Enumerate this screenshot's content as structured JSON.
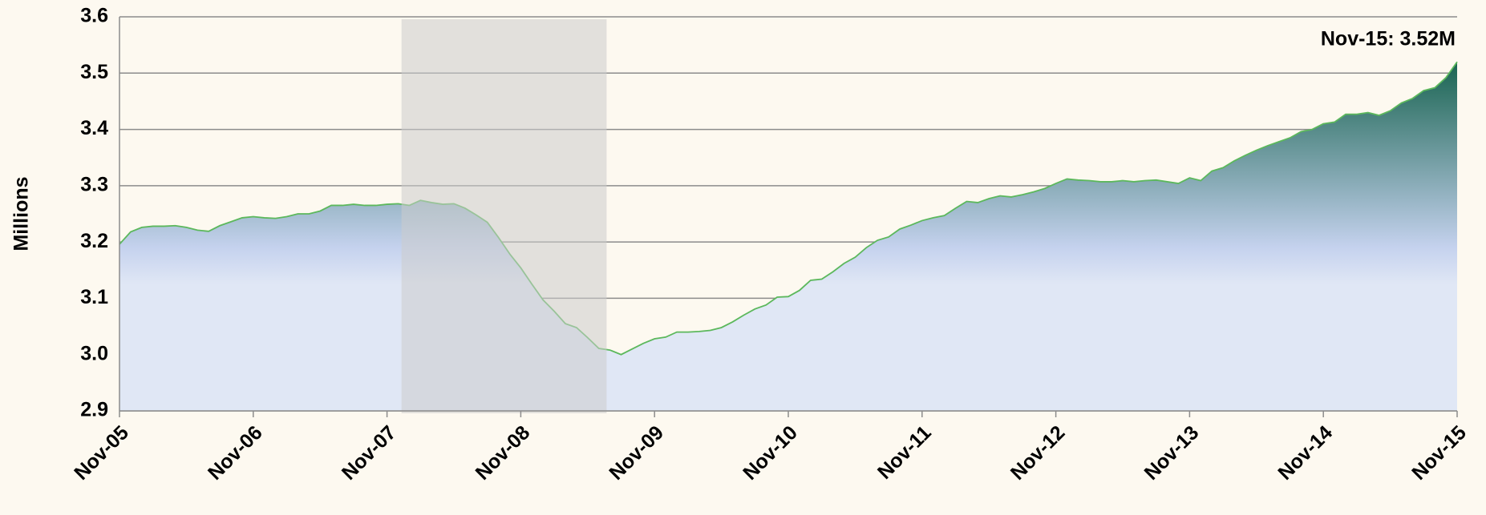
{
  "chart_data": {
    "type": "area",
    "annotation": "Nov-15: 3.52M",
    "ylabel": "Millions",
    "categories": [
      "Nov-05",
      null,
      null,
      null,
      null,
      null,
      null,
      null,
      null,
      null,
      null,
      null,
      "Nov-06",
      null,
      null,
      null,
      null,
      null,
      null,
      null,
      null,
      null,
      null,
      null,
      "Nov-07",
      null,
      null,
      null,
      null,
      null,
      null,
      null,
      null,
      null,
      null,
      null,
      "Nov-08",
      null,
      null,
      null,
      null,
      null,
      null,
      null,
      null,
      null,
      null,
      null,
      "Nov-09",
      null,
      null,
      null,
      null,
      null,
      null,
      null,
      null,
      null,
      null,
      null,
      "Nov-10",
      null,
      null,
      null,
      null,
      null,
      null,
      null,
      null,
      null,
      null,
      null,
      "Nov-11",
      null,
      null,
      null,
      null,
      null,
      null,
      null,
      null,
      null,
      null,
      null,
      "Nov-12",
      null,
      null,
      null,
      null,
      null,
      null,
      null,
      null,
      null,
      null,
      null,
      "Nov-13",
      null,
      null,
      null,
      null,
      null,
      null,
      null,
      null,
      null,
      null,
      null,
      "Nov-14",
      null,
      null,
      null,
      null,
      null,
      null,
      null,
      null,
      null,
      null,
      null,
      "Nov-15"
    ],
    "values": [
      3.196,
      3.218,
      3.226,
      3.228,
      3.228,
      3.229,
      3.226,
      3.221,
      3.219,
      3.229,
      3.236,
      3.243,
      3.245,
      3.243,
      3.242,
      3.245,
      3.25,
      3.25,
      3.255,
      3.265,
      3.265,
      3.267,
      3.265,
      3.265,
      3.267,
      3.268,
      3.265,
      3.274,
      3.27,
      3.267,
      3.268,
      3.26,
      3.248,
      3.235,
      3.208,
      3.179,
      3.154,
      3.125,
      3.097,
      3.077,
      3.055,
      3.048,
      3.03,
      3.011,
      3.008,
      3.0,
      3.01,
      3.02,
      3.028,
      3.031,
      3.04,
      3.04,
      3.041,
      3.043,
      3.048,
      3.058,
      3.07,
      3.081,
      3.088,
      3.102,
      3.103,
      3.114,
      3.132,
      3.134,
      3.147,
      3.162,
      3.173,
      3.19,
      3.203,
      3.209,
      3.223,
      3.23,
      3.238,
      3.243,
      3.247,
      3.26,
      3.272,
      3.27,
      3.277,
      3.282,
      3.28,
      3.284,
      3.289,
      3.295,
      3.304,
      3.312,
      3.31,
      3.309,
      3.307,
      3.307,
      3.309,
      3.307,
      3.309,
      3.31,
      3.307,
      3.304,
      3.314,
      3.309,
      3.326,
      3.332,
      3.344,
      3.354,
      3.363,
      3.371,
      3.378,
      3.385,
      3.396,
      3.4,
      3.41,
      3.413,
      3.427,
      3.427,
      3.43,
      3.425,
      3.433,
      3.447,
      3.455,
      3.469,
      3.474,
      3.492,
      3.52
    ],
    "line_color": "#5cb85c",
    "fill_colors": [
      "#0d5c46",
      "#c5d2ee",
      "#e0e7f5"
    ],
    "shaded_range": [
      25.3,
      43.7
    ],
    "shade_color": "#cccccc",
    "ylim": [
      2.9,
      3.6
    ],
    "yticks": [
      {
        "value": 2.9,
        "label": "2.9"
      },
      {
        "value": 3.0,
        "label": "3.0"
      },
      {
        "value": 3.1,
        "label": "3.1"
      },
      {
        "value": 3.2,
        "label": "3.2"
      },
      {
        "value": 3.3,
        "label": "3.3"
      },
      {
        "value": 3.4,
        "label": "3.4"
      },
      {
        "value": 3.5,
        "label": "3.5"
      },
      {
        "value": 3.6,
        "label": "3.6"
      }
    ],
    "grid": true
  }
}
